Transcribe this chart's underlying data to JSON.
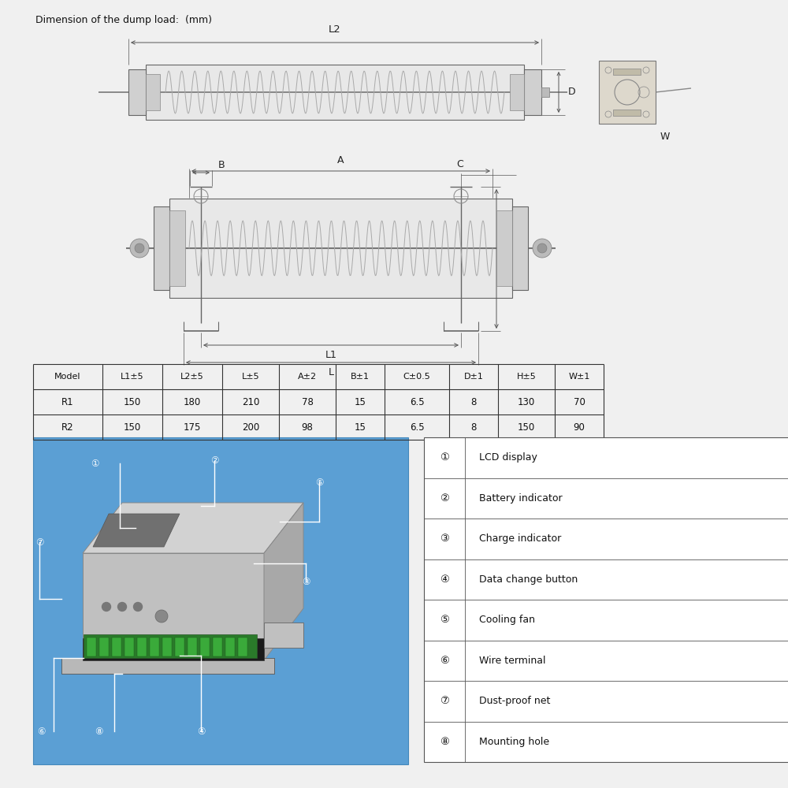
{
  "title_text": "Dimension of the dump load:  (mm)",
  "bg_color": "#f0f0f0",
  "table_headers": [
    "Model",
    "L1±5",
    "L2±5",
    "L±5",
    "A±2",
    "B±1",
    "C±0.5",
    "D±1",
    "H±5",
    "W±1"
  ],
  "table_rows": [
    [
      "R1",
      "150",
      "180",
      "210",
      "78",
      "15",
      "6.5",
      "8",
      "130",
      "70"
    ],
    [
      "R2",
      "150",
      "175",
      "200",
      "98",
      "15",
      "6.5",
      "8",
      "150",
      "90"
    ]
  ],
  "legend_items": [
    [
      "①",
      "LCD display"
    ],
    [
      "②",
      "Battery indicator"
    ],
    [
      "③",
      "Charge indicator"
    ],
    [
      "④",
      "Data change button"
    ],
    [
      "⑤",
      "Cooling fan"
    ],
    [
      "⑥",
      "Wire terminal"
    ],
    [
      "⑦",
      "Dust-proof net"
    ],
    [
      "⑧",
      "Mounting hole"
    ]
  ],
  "blue_bg": "#5b9fd4",
  "dim_color": "#555555",
  "body_color": "#e8e8e8",
  "cap_color": "#d0d0d0",
  "line_color": "#666666"
}
